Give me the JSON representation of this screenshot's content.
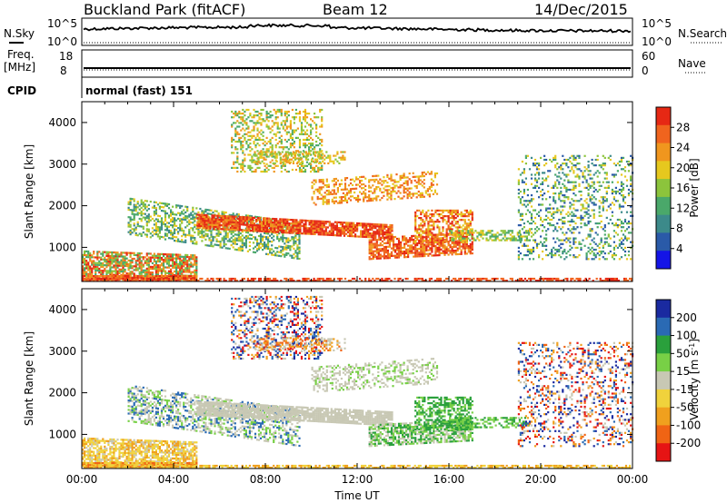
{
  "header": {
    "title": "Buckland Park (fitACF)",
    "beam": "Beam 12",
    "date": "14/Dec/2015"
  },
  "top_panel": {
    "left_label": "N.Sky",
    "right_label": "N.Search",
    "left_ticks": [
      "10^5",
      "10^0"
    ],
    "right_ticks": [
      "10^5",
      "10^0"
    ]
  },
  "freq_panel": {
    "label_line1": "Freq.",
    "label_line2": "[MHz]",
    "left_ticks": [
      "18",
      "8"
    ],
    "right_label": "Nave",
    "right_ticks": [
      "60",
      "0"
    ]
  },
  "cpid": {
    "label": "CPID",
    "value": "normal (fast) 151"
  },
  "colors": {
    "power": [
      "#1414e6",
      "#2a5aa8",
      "#3c8a8a",
      "#4aa86a",
      "#8cc43c",
      "#e6c81e",
      "#f0961e",
      "#f0641e",
      "#e62814"
    ],
    "velocity": [
      "#1a2aa0",
      "#2a6ab4",
      "#2aa03c",
      "#78d046",
      "#c8c8b4",
      "#f0d23c",
      "#f0a01e",
      "#f06414",
      "#e61414"
    ]
  },
  "chart_data": [
    {
      "type": "heatmap",
      "name": "power",
      "xlabel": "",
      "ylabel": "Slant Range [km]",
      "xlim": [
        0,
        24
      ],
      "ylim": [
        180,
        4500
      ],
      "y_ticks": [
        "1000",
        "2000",
        "3000",
        "4000"
      ],
      "colorbar_label": "Power [dB]",
      "colorbar_ticks": [
        "4",
        "8",
        "12",
        "16",
        "20",
        "24",
        "28"
      ],
      "colorbar_range": [
        0,
        32
      ]
    },
    {
      "type": "heatmap",
      "name": "velocity",
      "xlabel": "Time UT",
      "ylabel": "Slant Range [km]",
      "xlim": [
        0,
        24
      ],
      "ylim": [
        180,
        4500
      ],
      "x_ticks": [
        "00:00",
        "04:00",
        "08:00",
        "12:00",
        "16:00",
        "20:00",
        "00:00"
      ],
      "y_ticks": [
        "1000",
        "2000",
        "3000",
        "4000"
      ],
      "colorbar_label": "Velocity [m s^-1]",
      "colorbar_ticks": [
        "200",
        "100",
        "50",
        "15",
        "-15",
        "-50",
        "-100",
        "-200"
      ]
    }
  ]
}
